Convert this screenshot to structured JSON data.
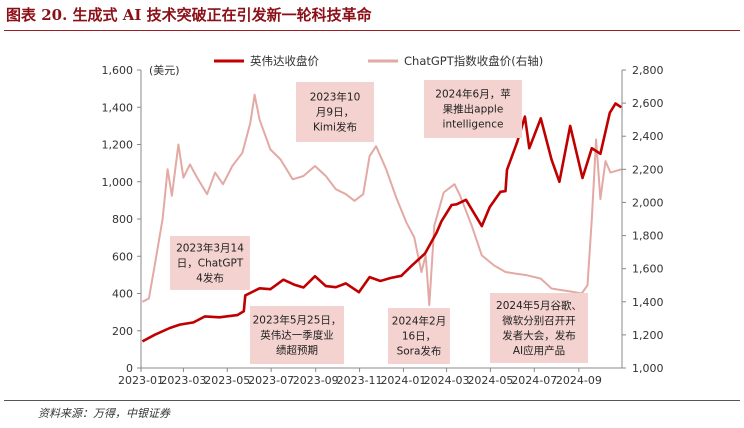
{
  "figure_title": "图表 20. 生成式 AI 技术突破正在引发新一轮科技革命",
  "source_note": "资料来源：万得，中银证券",
  "chart_data": {
    "type": "line",
    "left_unit": "(美元)",
    "left_ylim": [
      0,
      1600
    ],
    "left_ticks": [
      "0",
      "200",
      "400",
      "600",
      "800",
      "1,000",
      "1,200",
      "1,400",
      "1,600"
    ],
    "right_ylim": [
      1000,
      2800
    ],
    "right_ticks": [
      "1,000",
      "1,200",
      "1,400",
      "1,600",
      "1,800",
      "2,000",
      "2,200",
      "2,400",
      "2,600",
      "2,800"
    ],
    "x_ticks": [
      "2023-01",
      "2023-03",
      "2023-05",
      "2023-07",
      "2023-09",
      "2023-11",
      "2024-01",
      "2024-03",
      "2024-05",
      "2024-07",
      "2024-09"
    ],
    "grid": false,
    "legend_position": "top-center",
    "series": [
      {
        "name": "英伟达收盘价",
        "axis": "left",
        "color": "#c00000",
        "points": [
          [
            "2023-01-03",
            143
          ],
          [
            "2023-01-20",
            178
          ],
          [
            "2023-02-10",
            215
          ],
          [
            "2023-02-24",
            233
          ],
          [
            "2023-03-15",
            245
          ],
          [
            "2023-03-31",
            277
          ],
          [
            "2023-04-20",
            272
          ],
          [
            "2023-05-15",
            284
          ],
          [
            "2023-05-24",
            305
          ],
          [
            "2023-05-26",
            390
          ],
          [
            "2023-06-15",
            428
          ],
          [
            "2023-06-30",
            423
          ],
          [
            "2023-07-18",
            474
          ],
          [
            "2023-08-03",
            446
          ],
          [
            "2023-08-15",
            432
          ],
          [
            "2023-08-31",
            493
          ],
          [
            "2023-09-15",
            440
          ],
          [
            "2023-09-29",
            434
          ],
          [
            "2023-10-13",
            454
          ],
          [
            "2023-10-31",
            407
          ],
          [
            "2023-11-15",
            488
          ],
          [
            "2023-11-30",
            467
          ],
          [
            "2023-12-14",
            483
          ],
          [
            "2023-12-29",
            495
          ],
          [
            "2024-01-12",
            547
          ],
          [
            "2024-01-31",
            615
          ],
          [
            "2024-02-16",
            726
          ],
          [
            "2024-02-23",
            788
          ],
          [
            "2024-03-08",
            875
          ],
          [
            "2024-03-15",
            879
          ],
          [
            "2024-03-28",
            903
          ],
          [
            "2024-04-19",
            762
          ],
          [
            "2024-04-30",
            864
          ],
          [
            "2024-05-15",
            946
          ],
          [
            "2024-05-22",
            950
          ],
          [
            "2024-05-24",
            1064
          ],
          [
            "2024-06-07",
            1210
          ],
          [
            "2024-06-18",
            1350
          ],
          [
            "2024-06-24",
            1180
          ],
          [
            "2024-07-10",
            1340
          ],
          [
            "2024-07-25",
            1120
          ],
          [
            "2024-08-05",
            1000
          ],
          [
            "2024-08-20",
            1300
          ],
          [
            "2024-09-06",
            1020
          ],
          [
            "2024-09-19",
            1180
          ],
          [
            "2024-10-01",
            1150
          ],
          [
            "2024-10-14",
            1370
          ],
          [
            "2024-10-22",
            1420
          ],
          [
            "2024-10-30",
            1400
          ]
        ]
      },
      {
        "name": "ChatGPT指数收盘价(右轴)",
        "axis": "right",
        "color": "#e3a9a4",
        "points": [
          [
            "2023-01-03",
            1400
          ],
          [
            "2023-01-12",
            1420
          ],
          [
            "2023-01-20",
            1620
          ],
          [
            "2023-01-31",
            1900
          ],
          [
            "2023-02-07",
            2200
          ],
          [
            "2023-02-13",
            2040
          ],
          [
            "2023-02-22",
            2350
          ],
          [
            "2023-03-01",
            2150
          ],
          [
            "2023-03-10",
            2230
          ],
          [
            "2023-03-20",
            2150
          ],
          [
            "2023-04-03",
            2050
          ],
          [
            "2023-04-14",
            2180
          ],
          [
            "2023-04-25",
            2110
          ],
          [
            "2023-05-08",
            2220
          ],
          [
            "2023-05-22",
            2300
          ],
          [
            "2023-06-02",
            2480
          ],
          [
            "2023-06-08",
            2650
          ],
          [
            "2023-06-15",
            2500
          ],
          [
            "2023-06-30",
            2320
          ],
          [
            "2023-07-14",
            2260
          ],
          [
            "2023-07-31",
            2140
          ],
          [
            "2023-08-15",
            2160
          ],
          [
            "2023-08-31",
            2220
          ],
          [
            "2023-09-15",
            2160
          ],
          [
            "2023-09-29",
            2080
          ],
          [
            "2023-10-13",
            2050
          ],
          [
            "2023-10-25",
            2010
          ],
          [
            "2023-11-06",
            2050
          ],
          [
            "2023-11-15",
            2280
          ],
          [
            "2023-11-24",
            2340
          ],
          [
            "2023-12-08",
            2200
          ],
          [
            "2023-12-22",
            2030
          ],
          [
            "2024-01-05",
            1880
          ],
          [
            "2024-01-16",
            1790
          ],
          [
            "2024-01-26",
            1580
          ],
          [
            "2024-02-01",
            1680
          ],
          [
            "2024-02-06",
            1380
          ],
          [
            "2024-02-13",
            1860
          ],
          [
            "2024-02-26",
            2060
          ],
          [
            "2024-03-12",
            2110
          ],
          [
            "2024-03-20",
            2040
          ],
          [
            "2024-04-05",
            1860
          ],
          [
            "2024-04-19",
            1680
          ],
          [
            "2024-05-06",
            1620
          ],
          [
            "2024-05-22",
            1580
          ],
          [
            "2024-06-05",
            1570
          ],
          [
            "2024-06-21",
            1560
          ],
          [
            "2024-07-10",
            1540
          ],
          [
            "2024-07-25",
            1480
          ],
          [
            "2024-08-09",
            1470
          ],
          [
            "2024-08-23",
            1460
          ],
          [
            "2024-09-05",
            1450
          ],
          [
            "2024-09-13",
            1500
          ],
          [
            "2024-09-19",
            1900
          ],
          [
            "2024-09-25",
            2380
          ],
          [
            "2024-10-01",
            2020
          ],
          [
            "2024-10-08",
            2250
          ],
          [
            "2024-10-15",
            2180
          ],
          [
            "2024-10-30",
            2200
          ]
        ]
      }
    ],
    "annotations": [
      {
        "lines": [
          "2023年10",
          "月9日，",
          "Kimi发布"
        ]
      },
      {
        "lines": [
          "2024年6月，苹",
          "果推出apple",
          "intelligence"
        ]
      },
      {
        "lines": [
          "2023年3月14",
          "日，ChatGPT",
          "4发布"
        ]
      },
      {
        "lines": [
          "2023年5月25日，",
          "英伟达一季度业",
          "绩超预期"
        ]
      },
      {
        "lines": [
          "2024年2月",
          "16日，",
          "Sora发布"
        ]
      },
      {
        "lines": [
          "2024年5月谷歌、",
          "微软分别召开开",
          "发者大会，发布",
          "AI应用产品"
        ]
      }
    ]
  }
}
